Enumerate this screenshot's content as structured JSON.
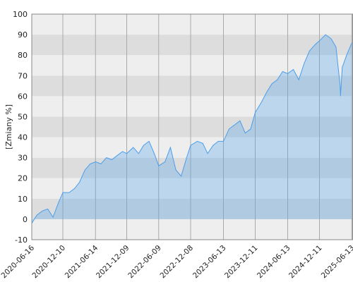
{
  "chart_data": {
    "type": "area",
    "y_label": "[Zmiany %]",
    "x": [
      "2020-06-16",
      "2020-07-15",
      "2020-08-15",
      "2020-09-15",
      "2020-10-15",
      "2020-11-15",
      "2020-12-10",
      "2021-01-15",
      "2021-02-15",
      "2021-03-15",
      "2021-04-15",
      "2021-05-15",
      "2021-06-14",
      "2021-07-15",
      "2021-08-15",
      "2021-09-15",
      "2021-10-15",
      "2021-11-15",
      "2021-12-09",
      "2022-01-15",
      "2022-02-15",
      "2022-03-15",
      "2022-04-15",
      "2022-05-15",
      "2022-06-09",
      "2022-07-15",
      "2022-08-15",
      "2022-09-15",
      "2022-10-15",
      "2022-11-15",
      "2022-12-08",
      "2023-01-15",
      "2023-02-15",
      "2023-03-15",
      "2023-04-15",
      "2023-05-15",
      "2023-06-13",
      "2023-07-15",
      "2023-08-15",
      "2023-09-15",
      "2023-10-15",
      "2023-11-15",
      "2023-12-11",
      "2024-01-15",
      "2024-02-15",
      "2024-03-15",
      "2024-04-15",
      "2024-05-15",
      "2024-06-13",
      "2024-07-15",
      "2024-08-15",
      "2024-09-15",
      "2024-10-15",
      "2024-11-15",
      "2024-12-11",
      "2025-01-15",
      "2025-02-15",
      "2025-03-15",
      "2025-04-08",
      "2025-04-10",
      "2025-04-20",
      "2025-05-15",
      "2025-06-13"
    ],
    "series": [
      {
        "color": "#4a9eea",
        "values": [
          -2,
          2,
          4,
          5,
          1,
          8,
          13,
          13,
          15,
          18,
          24,
          27,
          28,
          27,
          30,
          29,
          31,
          33,
          32,
          35,
          32,
          36,
          38,
          32,
          26,
          28,
          35,
          24,
          21,
          30,
          36,
          38,
          37,
          32,
          36,
          38,
          38,
          44,
          46,
          48,
          42,
          44,
          52,
          57,
          62,
          66,
          68,
          72,
          71,
          73,
          68,
          76,
          82,
          85,
          87,
          90,
          88,
          84,
          65,
          60,
          74,
          80,
          86
        ]
      }
    ],
    "xlim": [
      "2020-06-16",
      "2025-06-20"
    ],
    "xticks": [
      "2020-06-16",
      "2020-12-10",
      "2021-06-14",
      "2021-12-09",
      "2022-06-09",
      "2022-12-08",
      "2023-06-13",
      "2023-12-11",
      "2024-06-13",
      "2024-12-11",
      "2025-06-13"
    ],
    "ylim": [
      -10,
      100
    ],
    "yticks": [
      -10,
      0,
      10,
      20,
      30,
      40,
      50,
      60,
      70,
      80,
      90,
      100
    ],
    "grid": true
  }
}
